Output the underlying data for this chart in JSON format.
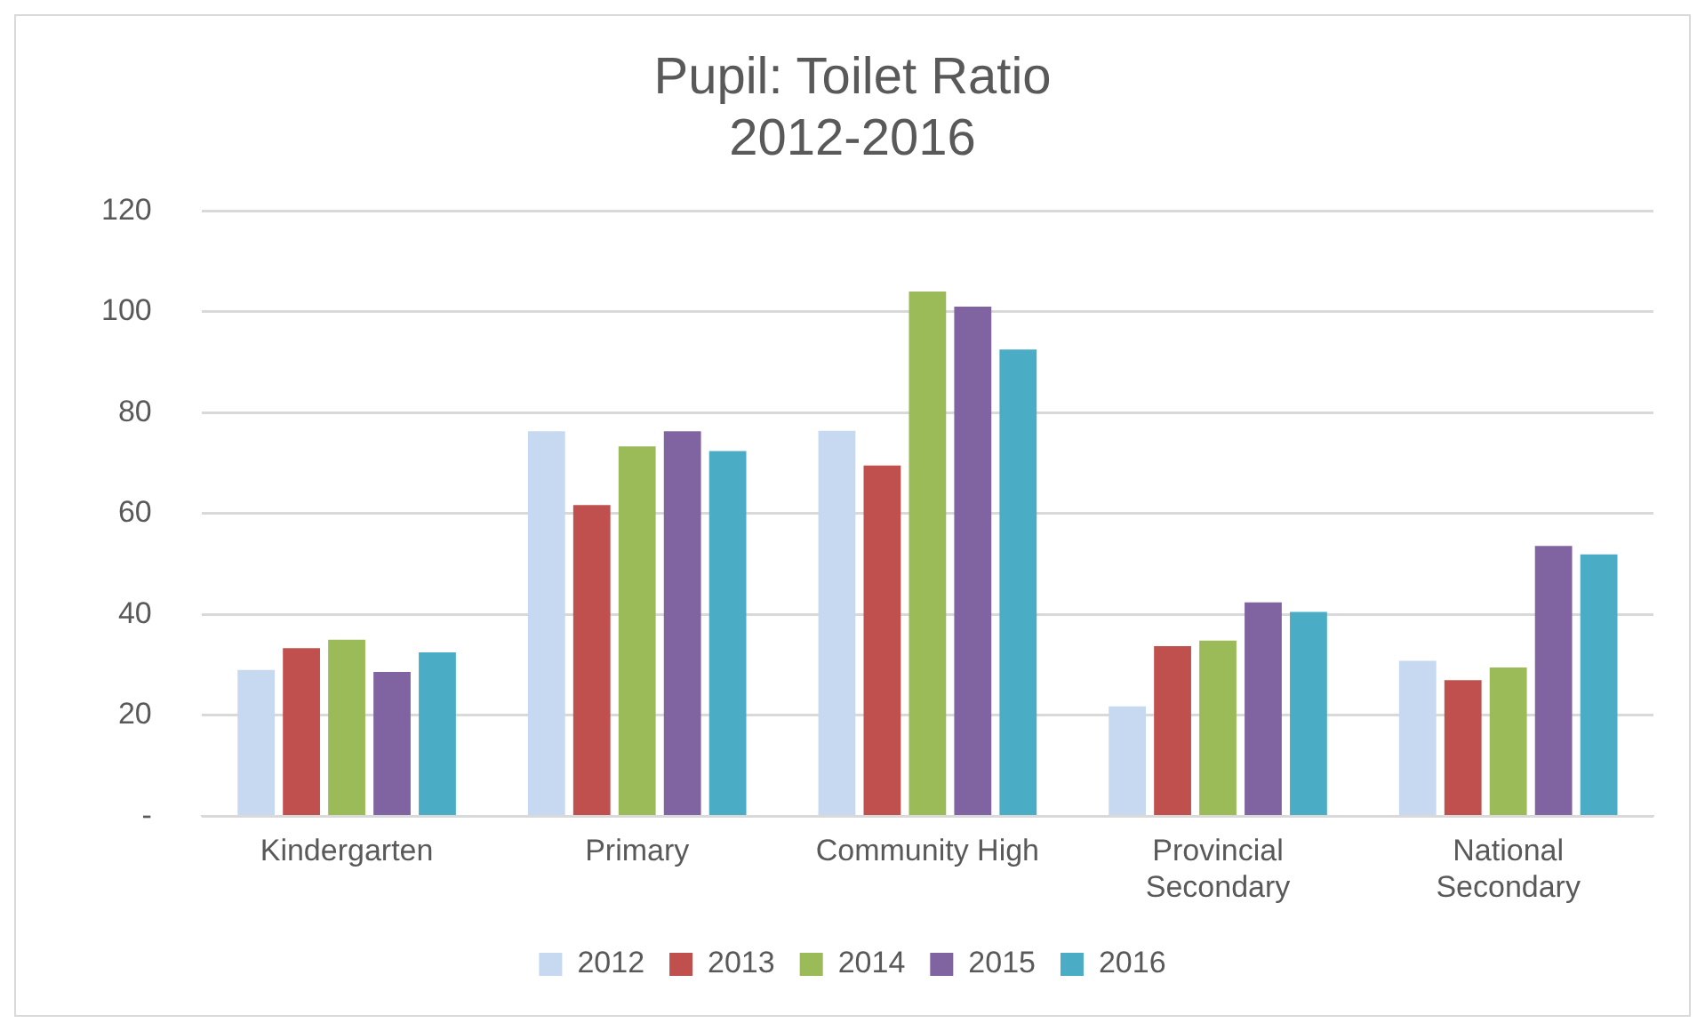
{
  "chart_data": {
    "type": "bar",
    "title": "Pupil: Toilet Ratio\n2012-2016",
    "categories": [
      "Kindergarten",
      "Primary",
      "Community High",
      "Provincial Secondary",
      "National Secondary"
    ],
    "series": [
      {
        "name": "2012",
        "color": "#c6d9f1",
        "values": [
          29,
          76.3,
          76.4,
          21.8,
          30.8
        ]
      },
      {
        "name": "2013",
        "color": "#c0504d",
        "values": [
          33.3,
          61.7,
          69.5,
          33.7,
          27
        ]
      },
      {
        "name": "2014",
        "color": "#9bbb59",
        "values": [
          35,
          73.3,
          104,
          34.8,
          29.5
        ]
      },
      {
        "name": "2015",
        "color": "#8064a2",
        "values": [
          28.6,
          76.3,
          101,
          42.4,
          53.6
        ]
      },
      {
        "name": "2016",
        "color": "#4bacc6",
        "values": [
          32.5,
          72.4,
          92.5,
          40.5,
          51.9
        ]
      }
    ],
    "ylim": [
      0,
      120
    ],
    "yticks": [
      {
        "value": 0,
        "label": "-"
      },
      20,
      40,
      60,
      80,
      100,
      120
    ],
    "grid": "y",
    "legend": "bottom"
  }
}
